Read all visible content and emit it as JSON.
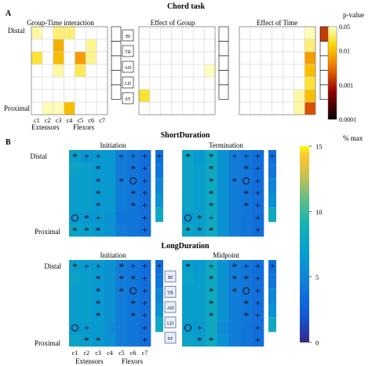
{
  "figure": {
    "title": "Chord task",
    "panel_a_label": "A",
    "panel_b_label": "B"
  },
  "colorbars": {
    "pvalue": {
      "label": "p-value",
      "ticks": [
        "0.05",
        "0.01",
        "0.001",
        "0.0001"
      ],
      "scale": "log",
      "range": [
        0.0001,
        0.05
      ]
    },
    "pctmax": {
      "label": "% max",
      "ticks": [
        "15",
        "10",
        "5",
        "0"
      ],
      "range": [
        0,
        15
      ]
    }
  },
  "axis_labels": {
    "rows": [
      "Distal",
      "Proximal"
    ],
    "columns": [
      "c1",
      "c2",
      "c3",
      "c4",
      "c5",
      "c6",
      "c7"
    ],
    "extensors": "Extensors",
    "flexors": "Flexors",
    "fingers": [
      "BI",
      "TR",
      "AD",
      "LD",
      "ST"
    ]
  },
  "chart_data": [
    {
      "type": "heatmap",
      "panel": "A",
      "title": "Group-Time interaction",
      "rows": 7,
      "cols": 7,
      "scale": "p-value",
      "values": [
        [
          0.04,
          null,
          0.03,
          0.03,
          null,
          null,
          null
        ],
        [
          null,
          null,
          0.008,
          null,
          null,
          0.035,
          null
        ],
        [
          0.02,
          null,
          0.01,
          null,
          0.006,
          0.035,
          null
        ],
        [
          null,
          null,
          0.04,
          null,
          0.025,
          null,
          null
        ],
        [
          null,
          null,
          null,
          null,
          null,
          null,
          null
        ],
        [
          null,
          null,
          null,
          null,
          null,
          null,
          null
        ],
        [
          null,
          0.045,
          0.045,
          0.01,
          null,
          null,
          null
        ]
      ],
      "side_column": [
        null,
        null,
        null,
        null,
        null
      ]
    },
    {
      "type": "heatmap",
      "panel": "A",
      "title": "Effect of Group",
      "rows": 7,
      "cols": 7,
      "scale": "p-value",
      "values": [
        [
          null,
          null,
          null,
          null,
          null,
          null,
          null
        ],
        [
          null,
          null,
          null,
          null,
          null,
          null,
          null
        ],
        [
          null,
          null,
          null,
          null,
          null,
          null,
          null
        ],
        [
          null,
          null,
          null,
          null,
          null,
          null,
          0.048
        ],
        [
          null,
          null,
          null,
          null,
          null,
          null,
          null
        ],
        [
          0.02,
          null,
          null,
          null,
          null,
          null,
          null
        ],
        [
          null,
          null,
          null,
          null,
          null,
          null,
          null
        ]
      ],
      "side_column": [
        null,
        null,
        null,
        null,
        null
      ]
    },
    {
      "type": "heatmap",
      "panel": "A",
      "title": "Effect of Time",
      "rows": 7,
      "cols": 7,
      "scale": "p-value",
      "values": [
        [
          null,
          null,
          null,
          null,
          null,
          null,
          0.045
        ],
        [
          null,
          null,
          null,
          null,
          null,
          null,
          0.03
        ],
        [
          null,
          null,
          null,
          null,
          null,
          null,
          0.006
        ],
        [
          null,
          null,
          null,
          null,
          null,
          null,
          0.01
        ],
        [
          null,
          null,
          null,
          null,
          null,
          null,
          0.02
        ],
        [
          null,
          null,
          null,
          null,
          null,
          0.04,
          0.01
        ],
        [
          null,
          null,
          null,
          null,
          null,
          0.04,
          0.002
        ]
      ],
      "side_column": [
        0.0015,
        null,
        null,
        null,
        null
      ]
    },
    {
      "type": "heatmap",
      "panel": "B",
      "group": "ShortDuration",
      "title": "Initiation",
      "rows": 7,
      "cols": 7,
      "scale": "% max",
      "values": [
        [
          7,
          6,
          6.5,
          6.5,
          4.5,
          4,
          3.5
        ],
        [
          7.5,
          7,
          6.5,
          6.5,
          4.5,
          4,
          3.5
        ],
        [
          7,
          7,
          6.5,
          6.5,
          4.5,
          4,
          3.5
        ],
        [
          7,
          7,
          6.5,
          6.5,
          4.5,
          4,
          3.5
        ],
        [
          7,
          7,
          6.5,
          6.5,
          4.5,
          4,
          3.5
        ],
        [
          6.5,
          6.5,
          6.5,
          6,
          4,
          4,
          3.5
        ],
        [
          7.5,
          7,
          6.5,
          6,
          4.5,
          4,
          3.5
        ]
      ],
      "side_column": [
        3.5,
        4,
        5,
        6,
        8
      ],
      "markers": [
        [
          "*",
          "+",
          "+",
          "",
          "+",
          "+",
          "+"
        ],
        [
          "",
          "",
          "*",
          "",
          "",
          "*",
          "+"
        ],
        [
          "",
          "",
          "*",
          "",
          "*",
          "o",
          "+"
        ],
        [
          "",
          "",
          "*",
          "",
          "",
          "*",
          "+"
        ],
        [
          "",
          "",
          "*",
          "",
          "",
          "*",
          "+"
        ],
        [
          "o",
          "*",
          "+",
          "",
          "",
          "",
          "+"
        ],
        [
          "*",
          "*",
          "*",
          "",
          "",
          "",
          "+"
        ]
      ],
      "side_markers": [
        "+",
        "",
        "",
        "",
        ""
      ]
    },
    {
      "type": "heatmap",
      "panel": "B",
      "group": "ShortDuration",
      "title": "Termination",
      "rows": 7,
      "cols": 7,
      "scale": "% max",
      "values": [
        [
          7.5,
          6.5,
          8,
          6,
          4.5,
          4,
          3.5
        ],
        [
          7.5,
          7,
          8,
          6,
          4.5,
          4,
          3.5
        ],
        [
          7.5,
          7,
          8,
          6,
          4.5,
          4,
          3.5
        ],
        [
          7.5,
          7,
          8,
          6,
          4.5,
          4,
          3.5
        ],
        [
          7.5,
          7,
          8,
          6,
          4.5,
          4,
          3.5
        ],
        [
          6.5,
          7,
          8,
          6,
          4.5,
          4,
          3.5
        ],
        [
          7.5,
          7,
          8,
          6,
          4.5,
          4,
          3.5
        ]
      ],
      "side_column": [
        3.5,
        4,
        5,
        6,
        8
      ],
      "markers": [
        [
          "*",
          "",
          "*",
          "",
          "+",
          "+",
          "+"
        ],
        [
          "",
          "",
          "*",
          "",
          "",
          "*",
          "+"
        ],
        [
          "",
          "",
          "*",
          "",
          "*",
          "o",
          "+"
        ],
        [
          "",
          "",
          "*",
          "",
          "",
          "*",
          "+"
        ],
        [
          "",
          "",
          "*",
          "",
          "",
          "*",
          "+"
        ],
        [
          "o",
          "*",
          "+",
          "",
          "",
          "",
          "+"
        ],
        [
          "*",
          "*",
          "*",
          "",
          "",
          "",
          "+"
        ]
      ],
      "side_markers": [
        "+",
        "",
        "",
        "",
        ""
      ]
    },
    {
      "type": "heatmap",
      "panel": "B",
      "group": "LongDuration",
      "title": "Initiation",
      "rows": 7,
      "cols": 7,
      "scale": "% max",
      "values": [
        [
          7,
          6.5,
          6.5,
          6,
          4.5,
          4,
          3.5
        ],
        [
          7.5,
          7,
          6.5,
          6,
          4.5,
          4,
          3.5
        ],
        [
          7,
          7,
          6.5,
          6,
          4.5,
          4,
          3.5
        ],
        [
          7,
          7,
          6.5,
          6,
          4.5,
          4,
          3.5
        ],
        [
          7,
          7,
          6.5,
          6,
          4.5,
          4,
          3.5
        ],
        [
          6.5,
          6.5,
          6.5,
          5.5,
          4.5,
          4,
          3.5
        ],
        [
          7.5,
          7,
          6.5,
          6,
          4.5,
          4,
          3.5
        ]
      ],
      "side_column": [
        3.5,
        4,
        5,
        6,
        8
      ],
      "markers": [
        [
          "*",
          "+",
          "+",
          "",
          "*",
          "+",
          "+"
        ],
        [
          "",
          "",
          "*",
          "",
          "*",
          "*",
          "+"
        ],
        [
          "",
          "",
          "*",
          "",
          "*",
          "o",
          "+"
        ],
        [
          "",
          "",
          "*",
          "",
          "",
          "*",
          "+"
        ],
        [
          "",
          "",
          "*",
          "",
          "",
          "*",
          "+"
        ],
        [
          "o",
          "+",
          "",
          "",
          "",
          "",
          "+"
        ],
        [
          "",
          "*",
          "*",
          "",
          "",
          "",
          "+"
        ]
      ],
      "side_markers": [
        "+",
        "",
        "",
        "",
        ""
      ]
    },
    {
      "type": "heatmap",
      "panel": "B",
      "group": "LongDuration",
      "title": "Midpoint",
      "rows": 7,
      "cols": 7,
      "scale": "% max",
      "values": [
        [
          7,
          6.5,
          8,
          6,
          4.5,
          4,
          3.5
        ],
        [
          7.5,
          7,
          8,
          6,
          4.5,
          4,
          3.5
        ],
        [
          7,
          7,
          8,
          6,
          4.5,
          4,
          3.5
        ],
        [
          7,
          7,
          8,
          6,
          4.5,
          4,
          3.5
        ],
        [
          7,
          7,
          8,
          6,
          4.5,
          4,
          3.5
        ],
        [
          6.5,
          6.5,
          8,
          5.5,
          4.5,
          4,
          3.5
        ],
        [
          7.5,
          7,
          8,
          6,
          4.5,
          4,
          3.5
        ]
      ],
      "side_column": [
        3.5,
        4,
        5,
        6,
        8
      ],
      "markers": [
        [
          "*",
          "",
          "+",
          "",
          "*",
          "+",
          "+"
        ],
        [
          "",
          "",
          "*",
          "",
          "*",
          "*",
          "+"
        ],
        [
          "",
          "",
          "*",
          "",
          "*",
          "o",
          "+"
        ],
        [
          "",
          "",
          "*",
          "",
          "",
          "*",
          "+"
        ],
        [
          "",
          "",
          "*",
          "",
          "",
          "*",
          "+"
        ],
        [
          "o",
          "+",
          "",
          "",
          "",
          "",
          "+"
        ],
        [
          "",
          "*",
          "*",
          "",
          "",
          "",
          "+"
        ]
      ],
      "side_markers": [
        "+",
        "",
        "",
        "",
        ""
      ]
    }
  ]
}
